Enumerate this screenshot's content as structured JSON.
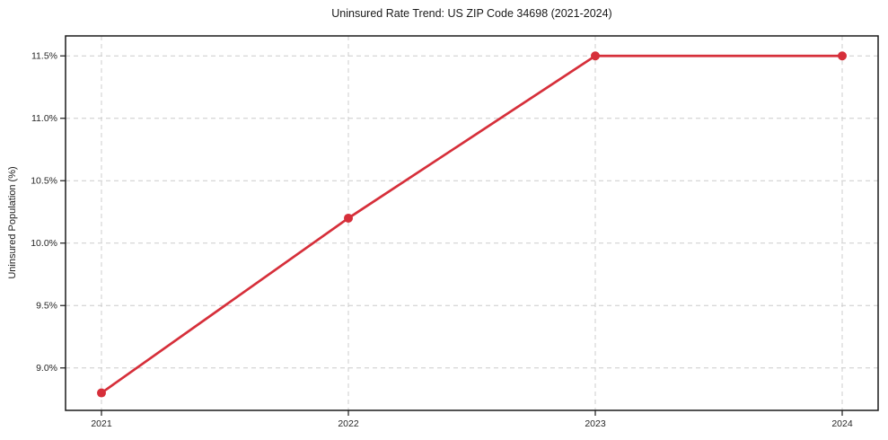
{
  "chart_data": {
    "type": "line",
    "title": "Uninsured Rate Trend: US ZIP Code 34698 (2021-2024)",
    "xlabel": "",
    "ylabel": "Uninsured Population (%)",
    "categories": [
      "2021",
      "2022",
      "2023",
      "2024"
    ],
    "values": [
      8.8,
      10.2,
      11.5,
      11.5
    ],
    "ylim": [
      8.66,
      11.66
    ],
    "yticks": [
      9.0,
      9.5,
      10.0,
      10.5,
      11.0,
      11.5
    ],
    "ytick_suffix": "%",
    "ytick_decimals": 1,
    "grid": true,
    "legend": "none",
    "marker": "circle",
    "colors": {
      "line": "#d62f3a",
      "marker": "#d62f3a",
      "grid": "#cccccc",
      "spine": "#1a1a1a",
      "text": "#262626",
      "background": "#ffffff"
    }
  }
}
